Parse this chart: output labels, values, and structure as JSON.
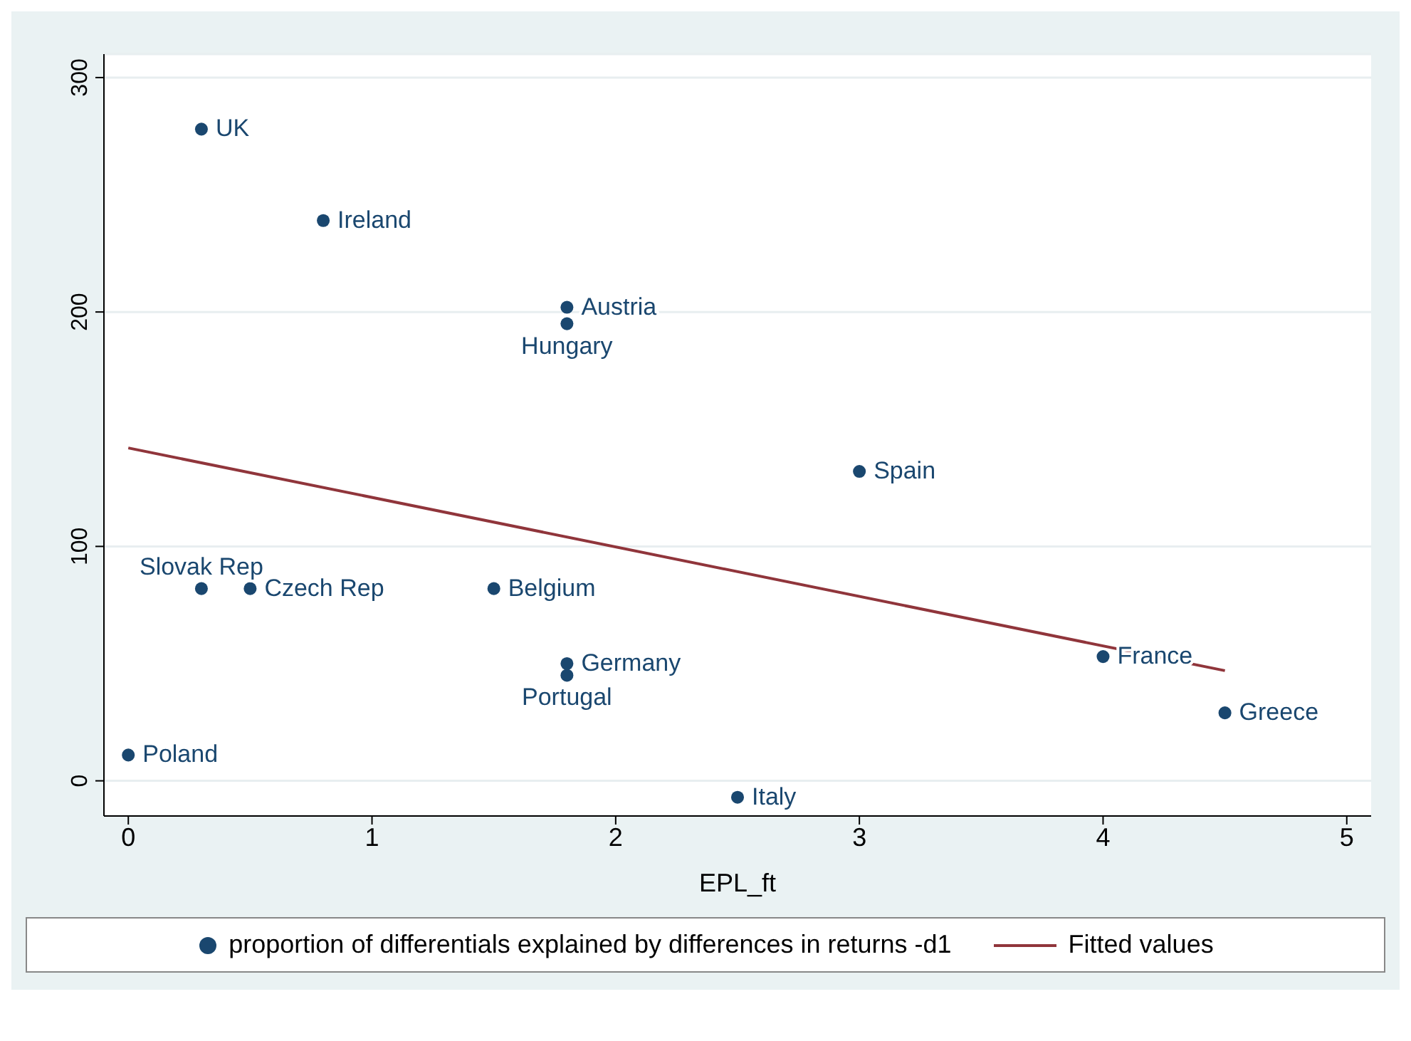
{
  "chart_data": {
    "type": "scatter",
    "xlabel": "EPL_ft",
    "xlim": [
      -0.1,
      5.1
    ],
    "xticks": [
      0,
      1,
      2,
      3,
      4,
      5
    ],
    "ylim": [
      -15,
      310
    ],
    "yticks": [
      0,
      100,
      200,
      300
    ],
    "grid": "y",
    "legend": "bottom",
    "series": [
      {
        "name": "proportion of differentials explained by differences in returns -d1",
        "color": "#1a476f",
        "marker": "circle",
        "x": [
          0.3,
          0.8,
          1.8,
          1.8,
          3.0,
          0.3,
          0.5,
          1.5,
          1.8,
          1.8,
          4.0,
          4.5,
          0,
          2.5
        ],
        "values": [
          278,
          239,
          202,
          195,
          132,
          82,
          82,
          82,
          50,
          45,
          53,
          29,
          11,
          -7
        ]
      },
      {
        "type": "line",
        "name": "Fitted values",
        "color": "#90353b",
        "marker": "none",
        "x": [
          0,
          4.5
        ],
        "values": [
          142,
          47
        ]
      }
    ],
    "annotations": [
      {
        "text": "UK",
        "x": 0.3,
        "y": 278
      },
      {
        "text": "Ireland",
        "x": 0.8,
        "y": 239
      },
      {
        "text": "Austria",
        "x": 1.8,
        "y": 202
      },
      {
        "text": "Hungary",
        "x": 1.8,
        "y": 195
      },
      {
        "text": "Spain",
        "x": 3.0,
        "y": 132
      },
      {
        "text": "Slovak Rep",
        "x": 0.3,
        "y": 82
      },
      {
        "text": "Czech Rep",
        "x": 0.5,
        "y": 82
      },
      {
        "text": "Belgium",
        "x": 1.5,
        "y": 82
      },
      {
        "text": "Germany",
        "x": 1.8,
        "y": 50
      },
      {
        "text": "Portugal",
        "x": 1.8,
        "y": 45
      },
      {
        "text": "France",
        "x": 4.0,
        "y": 53
      },
      {
        "text": "Greece",
        "x": 4.5,
        "y": 29
      },
      {
        "text": "Poland",
        "x": 0,
        "y": 11
      },
      {
        "text": "Italy",
        "x": 2.5,
        "y": -7
      }
    ]
  }
}
